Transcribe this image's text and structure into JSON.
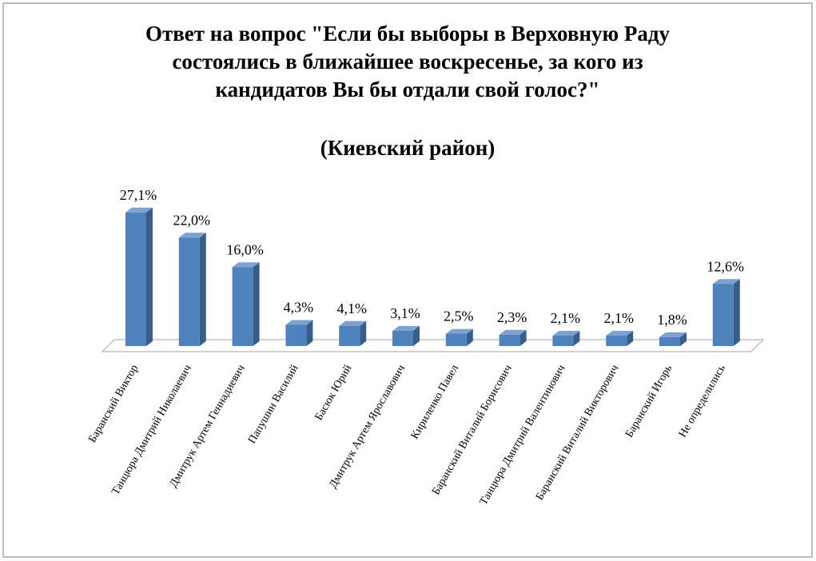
{
  "chart_data": {
    "type": "bar3d",
    "title": [
      "Ответ на вопрос \"Если бы выборы в Верховную Раду",
      "состоялись в ближайшее воскресенье, за кого из",
      "кандидатов Вы бы отдали свой голос?\""
    ],
    "subtitle": "(Киевский район)",
    "categories": [
      "Баранский Виктор",
      "Танцюра Дмитрий Николаевич",
      "Дмитрук Артем Геннадиевич",
      "Папушин Василий",
      "Басюк Юрий",
      "Дмитрук Артем Ярославович",
      "Кириленко Павел",
      "Баранский Виталий Борисович",
      "Танцюра Дмитрий Валентинович",
      "Баранский Виталий Викторович",
      "Баранский Игорь",
      "Не определились"
    ],
    "values": [
      27.1,
      22.0,
      16.0,
      4.3,
      4.1,
      3.1,
      2.5,
      2.3,
      2.1,
      2.1,
      1.8,
      12.6
    ],
    "value_labels": [
      "27,1%",
      "22,0%",
      "16,0%",
      "4,3%",
      "4,1%",
      "3,1%",
      "2,5%",
      "2,3%",
      "2,1%",
      "2,1%",
      "1,8%",
      "12,6%"
    ],
    "color": "#4f81bd"
  }
}
